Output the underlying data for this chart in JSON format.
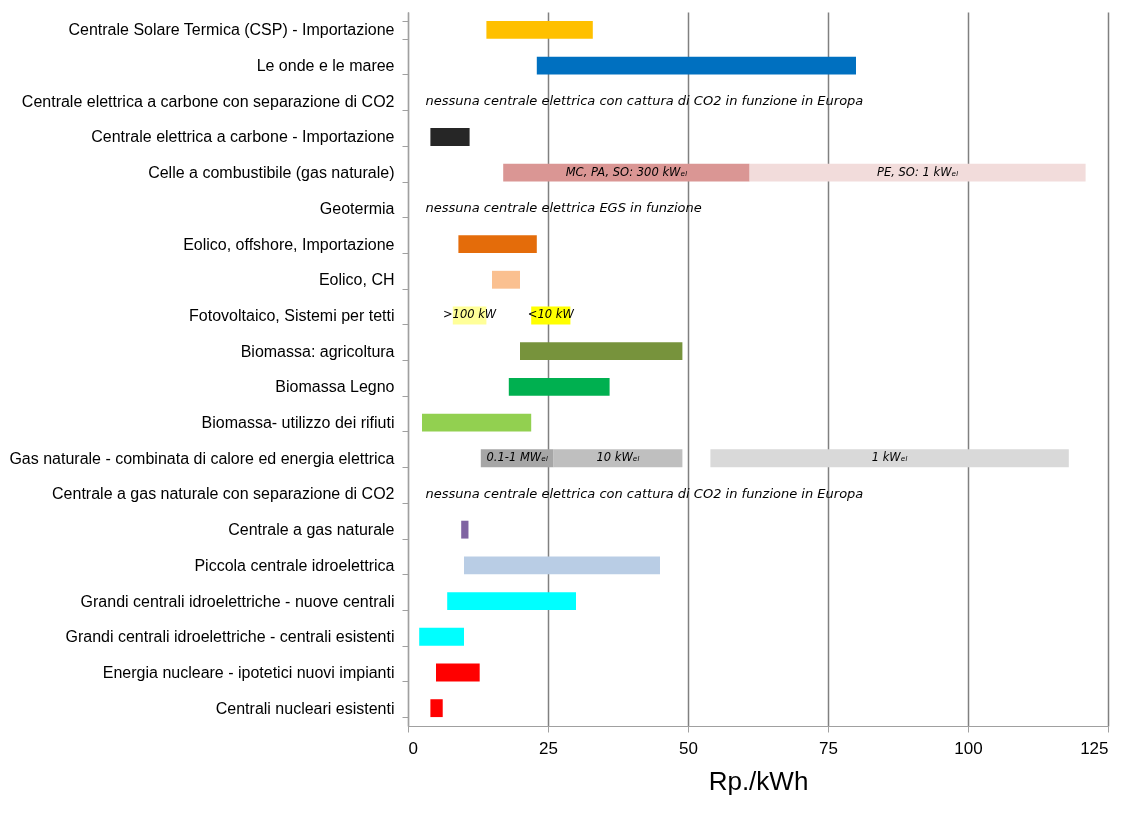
{
  "chart_data": {
    "type": "bar",
    "orientation": "horizontal",
    "xlabel": "Rp./kWh",
    "categories": [
      "Centrale Solare Termica (CSP) - Importazione",
      "Le onde e le maree",
      "Centrale elettrica a carbone con separazione di CO2",
      "Centrale elettrica a carbone - Importazione",
      "Celle a combustibile (gas naturale)",
      "Geotermia",
      "Eolico, offshore, Importazione",
      "Eolico, CH",
      "Fotovoltaico, Sistemi per tetti",
      "Biomassa: agricoltura",
      "Biomassa Legno",
      "Biomassa- utilizzo dei rifiuti",
      "Gas naturale - combinata di calore ed energia elettrica",
      "Centrale a gas naturale con separazione di CO2",
      "Centrale a gas naturale",
      "Piccola centrale idroelettrica",
      "Grandi centrali idroelettriche - nuove centrali",
      "Grandi centrali idroelettriche - centrali esistenti",
      "Energia nucleare - ipotetici nuovi impianti",
      "Centrali nucleari esistenti"
    ],
    "series": [
      {
        "base": [
          14,
          23,
          null,
          4,
          null,
          null,
          9,
          15,
          null,
          20,
          18,
          2.5,
          null,
          null,
          9.5,
          10,
          7,
          2,
          5,
          4
        ],
        "values": [
          19,
          57,
          null,
          7,
          null,
          null,
          14,
          5,
          null,
          29,
          18,
          19.5,
          null,
          null,
          1.3,
          35,
          23,
          8,
          7.8,
          2.2
        ],
        "colors": [
          "#ffc000",
          "#0070c0",
          null,
          "#262626",
          null,
          null,
          "#e46c0a",
          "#fac090",
          null,
          "#77933c",
          "#00b050",
          "#92d050",
          null,
          null,
          "#8064a2",
          "#b9cde5",
          "#00ffff",
          "#00ffff",
          "#ff0000",
          "#ff0000"
        ]
      },
      {
        "name": "MC, PA, SO: 300 kWₑₗ",
        "color": "#da9694",
        "base": [
          null,
          null,
          null,
          null,
          17,
          null,
          null,
          null,
          null,
          null,
          null,
          null,
          null,
          null,
          null,
          null,
          null,
          null,
          null,
          null
        ],
        "values": [
          null,
          null,
          null,
          null,
          44,
          null,
          null,
          null,
          null,
          null,
          null,
          null,
          null,
          null,
          null,
          null,
          null,
          null,
          null,
          null
        ]
      },
      {
        "name": "PE, SO: 1 kWₑₗ",
        "color": "#f2dcdb",
        "base": [
          null,
          null,
          null,
          null,
          61,
          null,
          null,
          null,
          null,
          null,
          null,
          null,
          null,
          null,
          null,
          null,
          null,
          null,
          null,
          null
        ],
        "values": [
          null,
          null,
          null,
          null,
          60,
          null,
          null,
          null,
          null,
          null,
          null,
          null,
          null,
          null,
          null,
          null,
          null,
          null,
          null,
          null
        ]
      },
      {
        "name": ">100 kW",
        "color": "#ffff99",
        "base": [
          null,
          null,
          null,
          null,
          null,
          null,
          null,
          null,
          8,
          null,
          null,
          null,
          null,
          null,
          null,
          null,
          null,
          null,
          null,
          null
        ],
        "values": [
          null,
          null,
          null,
          null,
          null,
          null,
          null,
          null,
          6,
          null,
          null,
          null,
          null,
          null,
          null,
          null,
          null,
          null,
          null,
          null
        ]
      },
      {
        "name": "<10 kW",
        "color": "#ffff00",
        "base": [
          null,
          null,
          null,
          null,
          null,
          null,
          null,
          null,
          22,
          null,
          null,
          null,
          null,
          null,
          null,
          null,
          null,
          null,
          null,
          null
        ],
        "values": [
          null,
          null,
          null,
          null,
          null,
          null,
          null,
          null,
          7,
          null,
          null,
          null,
          null,
          null,
          null,
          null,
          null,
          null,
          null,
          null
        ]
      },
      {
        "name": "0.1-1 MWₑₗ",
        "color": "#a6a6a6",
        "base": [
          null,
          null,
          null,
          null,
          null,
          null,
          null,
          null,
          null,
          null,
          null,
          null,
          13,
          null,
          null,
          null,
          null,
          null,
          null,
          null
        ],
        "values": [
          null,
          null,
          null,
          null,
          null,
          null,
          null,
          null,
          null,
          null,
          null,
          null,
          13,
          null,
          null,
          null,
          null,
          null,
          null,
          null
        ]
      },
      {
        "name": "10 kWₑₗ",
        "color": "#bfbfbf",
        "base": [
          null,
          null,
          null,
          null,
          null,
          null,
          null,
          null,
          null,
          null,
          null,
          null,
          26,
          null,
          null,
          null,
          null,
          null,
          null,
          null
        ],
        "values": [
          null,
          null,
          null,
          null,
          null,
          null,
          null,
          null,
          null,
          null,
          null,
          null,
          23,
          null,
          null,
          null,
          null,
          null,
          null,
          null
        ]
      },
      {
        "name": "1 kWₑₗ",
        "color": "#d9d9d9",
        "base": [
          null,
          null,
          null,
          null,
          null,
          null,
          null,
          null,
          null,
          null,
          null,
          null,
          54,
          null,
          null,
          null,
          null,
          null,
          null,
          null
        ],
        "values": [
          null,
          null,
          null,
          null,
          null,
          null,
          null,
          null,
          null,
          null,
          null,
          null,
          64,
          null,
          null,
          null,
          null,
          null,
          null,
          null
        ]
      }
    ],
    "xlim": [
      0,
      125
    ],
    "xticks": [
      0,
      25,
      50,
      75,
      100,
      125
    ],
    "grid": "x",
    "annotations": [
      "nessuna centrale elettrica con cattura di CO2 in funzione in Europa",
      "nessuna centrale elettrica EGS in funzione",
      "nessuna centrale elettrica con cattura di CO2 in funzione in Europa"
    ]
  }
}
